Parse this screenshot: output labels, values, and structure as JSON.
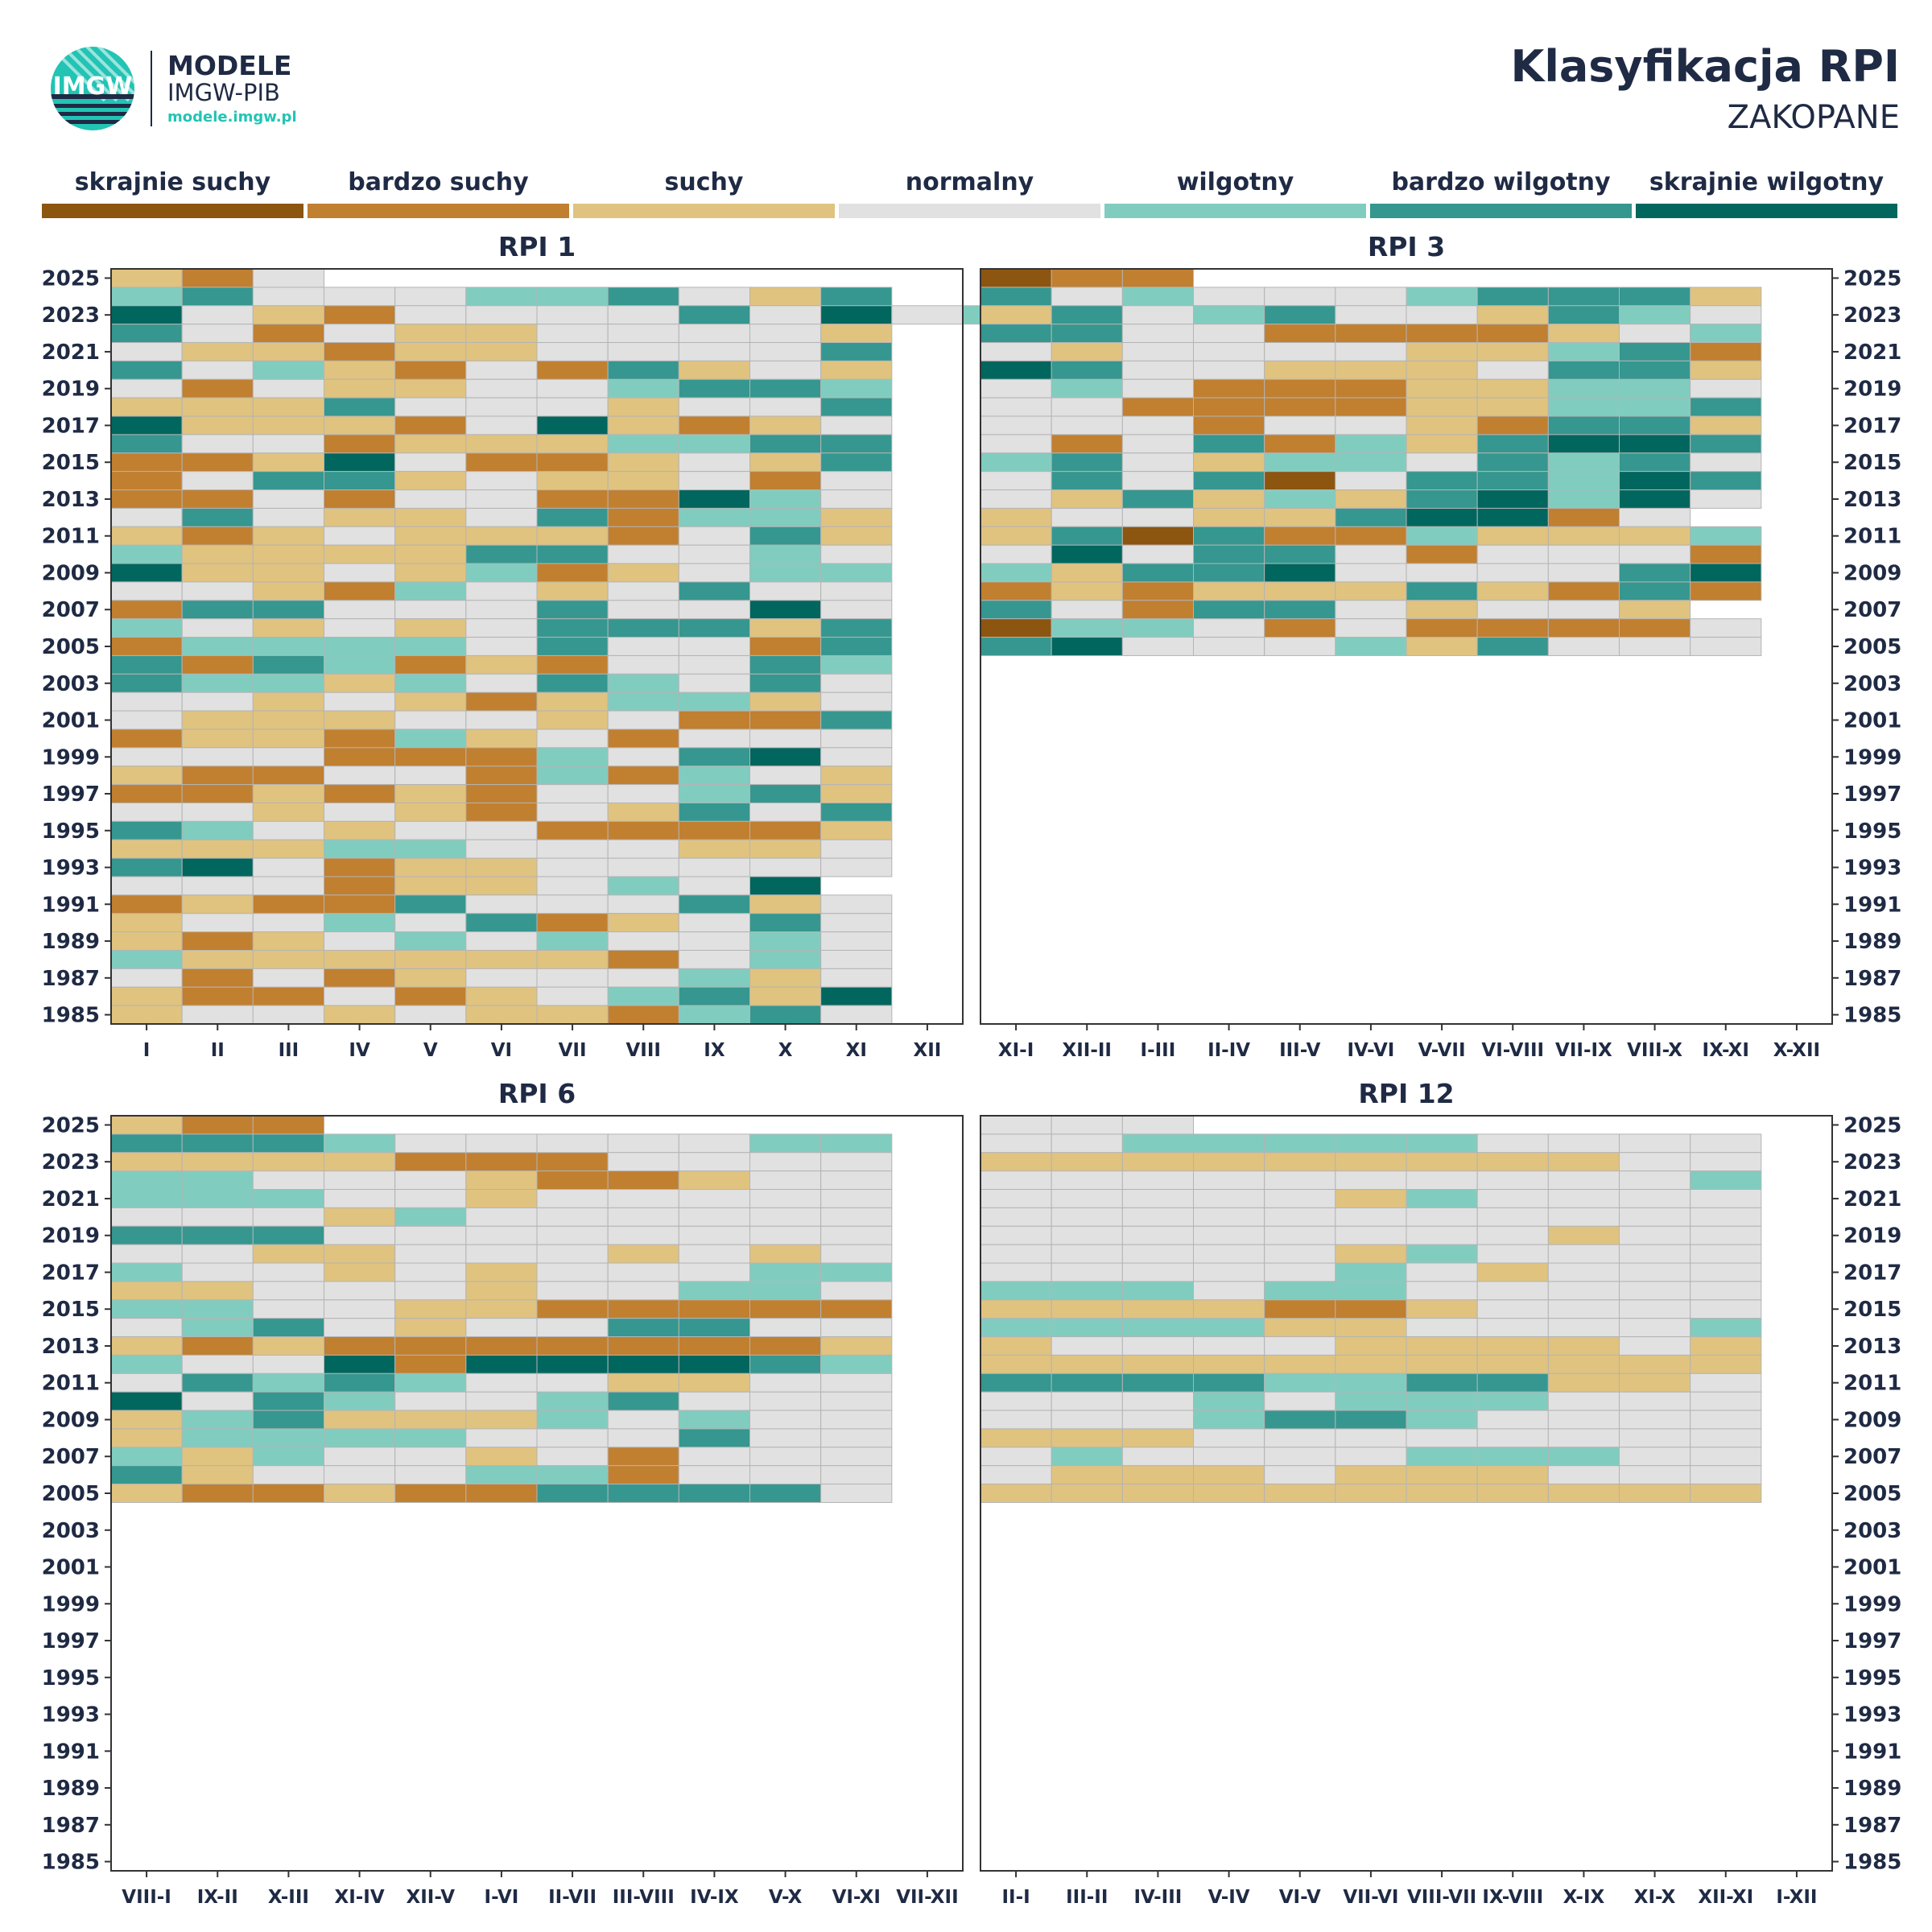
{
  "header": {
    "brand_name": "MODELE",
    "brand_org": "IMGW-PIB",
    "brand_url": "modele.imgw.pl",
    "logo_text": "IMGW",
    "title": "Klasyfikacja RPI",
    "station": "ZAKOPANE"
  },
  "legend": {
    "items": [
      {
        "label": "skrajnie suchy",
        "color": "#8c5510"
      },
      {
        "label": "bardzo suchy",
        "color": "#c17f30"
      },
      {
        "label": "suchy",
        "color": "#e0c37f"
      },
      {
        "label": "normalny",
        "color": "#e1e1e1"
      },
      {
        "label": "wilgotny",
        "color": "#80cdc0"
      },
      {
        "label": "bardzo wilgotny",
        "color": "#35978f"
      },
      {
        "label": "skrajnie wilgotny",
        "color": "#01665e"
      }
    ]
  },
  "chart_data": [
    {
      "type": "heatmap",
      "title": "RPI 1",
      "x_categories": [
        "I",
        "II",
        "III",
        "IV",
        "V",
        "VI",
        "VII",
        "VIII",
        "IX",
        "X",
        "XI",
        "XII"
      ],
      "y_tick_labels": [
        "2025",
        "2023",
        "2021",
        "2019",
        "2017",
        "2015",
        "2013",
        "2011",
        "2009",
        "2007",
        "2005",
        "2003",
        "2001",
        "1999",
        "1997",
        "1995",
        "1993",
        "1991",
        "1989",
        "1987",
        "1985"
      ],
      "year_range": [
        1985,
        2025
      ],
      "classes_legend": "0=skrajnie suchy,1=bardzo suchy,2=suchy,3=normalny,4=wilgotny,5=bardzo wilgotny,6=skrajnie wilgotny",
      "values_by_year_desc_from_2025": [
        "213",
        "45333445325",
        "63213333536342",
        "53132233332",
        "32212233335",
        "53421315232",
        "31322334554",
        "22253332335",
        "62221362123",
        "53312224455",
        "11263112325",
        "13552322313",
        "11313311643",
        "35322351442",
        "21232221352",
        "42222553343",
        "62232412344",
        "33214323533",
        "15533353363",
        "43232355525",
        "14444353315",
        "51541213354",
        "54424354353",
        "33232124423",
        "32223323115",
        "12214231333",
        "33311143563",
        "21133141432",
        "11212133452",
        "33232132535",
        "54323311112",
        "22244333223",
        "56312233333",
        "3331223436",
        "12115333523",
        "23343512353",
        "21234343343",
        "42222221343",
        "31312333423",
        "21131234526",
        "23323221453"
      ]
    },
    {
      "type": "heatmap",
      "title": "RPI 3",
      "x_categories": [
        "XI-I",
        "XII-II",
        "I-III",
        "II-IV",
        "III-V",
        "IV-VI",
        "V-VII",
        "VI-VIII",
        "VII-IX",
        "VIII-X",
        "IX-XI",
        "X-XII"
      ],
      "y_tick_labels": [
        "2025",
        "2023",
        "2021",
        "2019",
        "2017",
        "2015",
        "2013",
        "2011",
        "2009",
        "2007",
        "2005",
        "2003",
        "2001",
        "1999",
        "1997",
        "1995",
        "1993",
        "1991",
        "1989",
        "1987",
        "1985"
      ],
      "year_range": [
        1985,
        2025
      ],
      "classes_legend": "0=skrajnie suchy,1=bardzo suchy,2=suchy,3=normalny,4=wilgotny,5=bardzo wilgotny,6=skrajnie wilgotny",
      "values_by_year_desc_from_2025": [
        "011",
        "53433345552",
        "25345332543",
        "55331111234",
        "32333322451",
        "65332223552",
        "34311122443",
        "33111122445",
        "33313321552",
        "31351425665",
        "45324435453",
        "35350355465",
        "32524256463",
        "2332256613",
        "25051142224",
        "36355313331",
        "42556333356",
        "12122252151",
        "5315532332",
        "04431311113",
        "56333425333"
      ]
    },
    {
      "type": "heatmap",
      "title": "RPI 6",
      "x_categories": [
        "VIII-I",
        "IX-II",
        "X-III",
        "XI-IV",
        "XII-V",
        "I-VI",
        "II-VII",
        "III-VIII",
        "IV-IX",
        "V-X",
        "VI-XI",
        "VII-XII"
      ],
      "y_tick_labels": [
        "2025",
        "2023",
        "2021",
        "2019",
        "2017",
        "2015",
        "2013",
        "2011",
        "2009",
        "2007",
        "2005",
        "2003",
        "2001",
        "1999",
        "1997",
        "1995",
        "1993",
        "1991",
        "1989",
        "1987",
        "1985"
      ],
      "year_range": [
        1985,
        2025
      ],
      "classes_legend": "0=skrajnie suchy,1=bardzo suchy,2=suchy,3=normalny,4=wilgotny,5=bardzo wilgotny,6=skrajnie wilgotny",
      "values_by_year_desc_from_2025": [
        "211",
        "55543333344",
        "22221113333",
        "44333211233",
        "44433233333",
        "33324333333",
        "55533333333",
        "33223332323",
        "43323233344",
        "22333233443",
        "44332211111",
        "34532335533",
        "21211111112",
        "43361666654",
        "35454332233",
        "63543345333",
        "24522243433",
        "24444333533",
        "42433231333",
        "52333441333",
        "21121155553"
      ]
    },
    {
      "type": "heatmap",
      "title": "RPI 12",
      "x_categories": [
        "II-I",
        "III-II",
        "IV-III",
        "V-IV",
        "VI-V",
        "VII-VI",
        "VIII-VII",
        "IX-VIII",
        "X-IX",
        "XI-X",
        "XII-XI",
        "I-XII"
      ],
      "y_tick_labels": [
        "2025",
        "2023",
        "2021",
        "2019",
        "2017",
        "2015",
        "2013",
        "2011",
        "2009",
        "2007",
        "2005",
        "2003",
        "2001",
        "1999",
        "1997",
        "1995",
        "1993",
        "1991",
        "1989",
        "1987",
        "1985"
      ],
      "year_range": [
        1985,
        2025
      ],
      "classes_legend": "0=skrajnie suchy,1=bardzo suchy,2=suchy,3=normalny,4=wilgotny,5=bardzo wilgotny,6=skrajnie wilgotny",
      "values_by_year_desc_from_2025": [
        "333",
        "33444443333",
        "22222222233",
        "33333333334",
        "33333243333",
        "33333333333",
        "33333333233",
        "33333243333",
        "33333432333",
        "44434433333",
        "22221123333",
        "44442233334",
        "23333222232",
        "22222222222",
        "55554455223",
        "33343444333",
        "33345543333",
        "22233333333",
        "34333344433",
        "32223222333",
        "22222222222"
      ]
    }
  ]
}
